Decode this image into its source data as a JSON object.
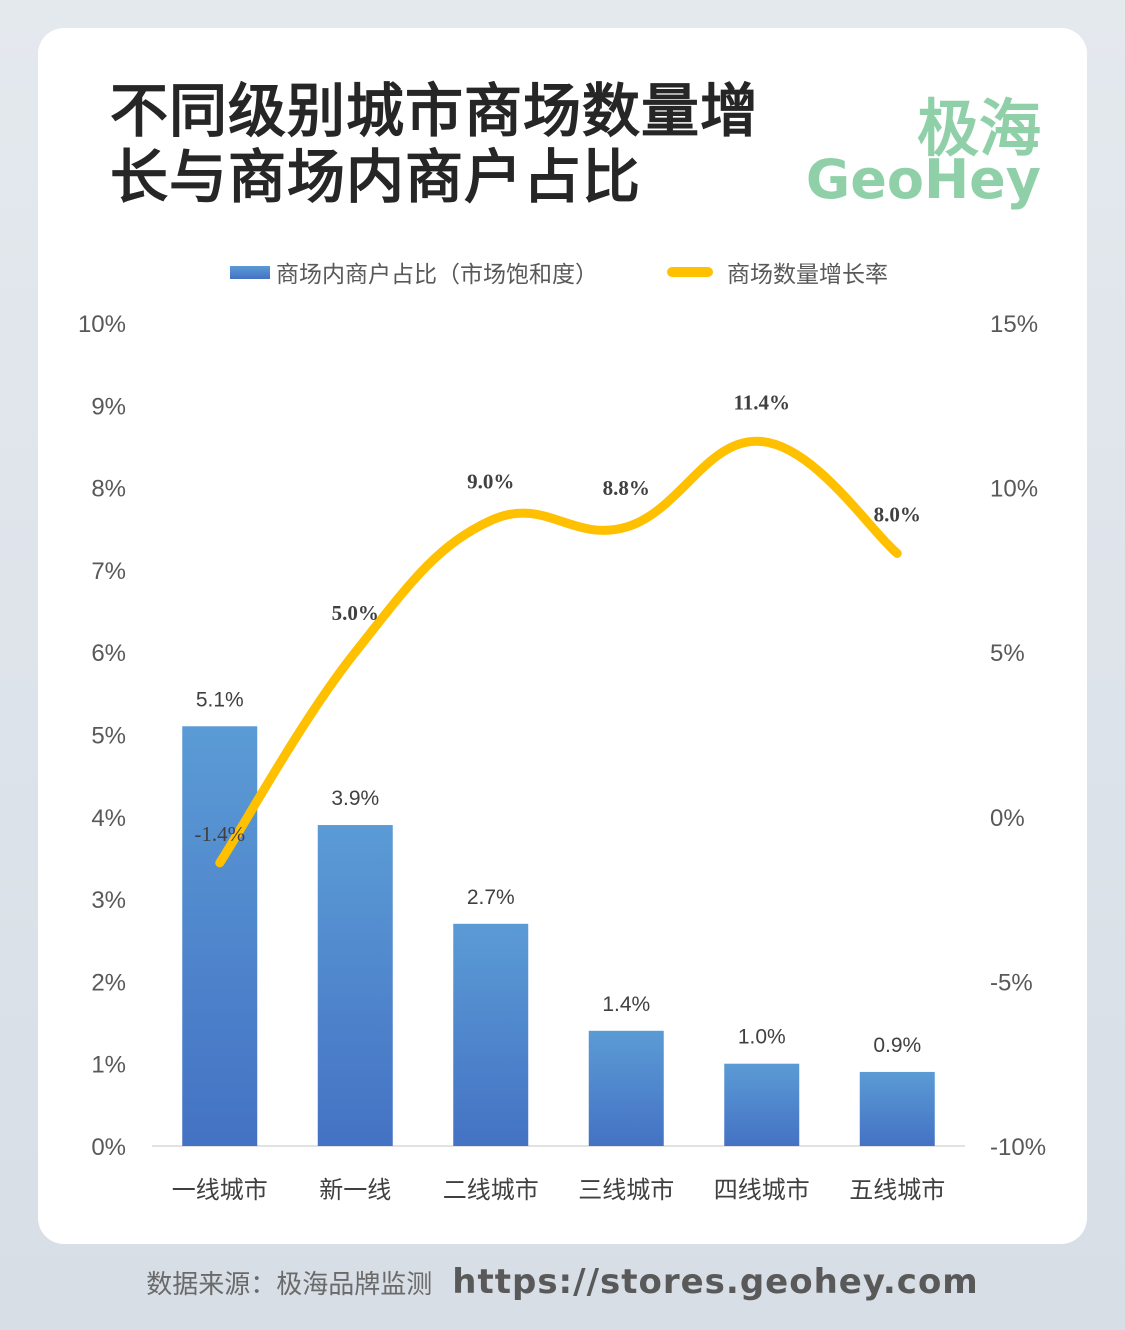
{
  "header": {
    "title": "不同级别城市商场数量增长与商场内商户占比",
    "brand_cn": "极海",
    "brand_en": "GeoHey"
  },
  "legend": {
    "bar_label": "商场内商户占比（市场饱和度）",
    "line_label": "商场数量增长率"
  },
  "footer": {
    "source": "数据来源：极海品牌监测",
    "url": "https://stores.geohey.com"
  },
  "colors": {
    "bar_top": "#5b9bd5",
    "bar_bottom": "#4472c4",
    "line": "#ffc000",
    "brand": "#8fd0a9"
  },
  "chart_data": {
    "type": "bar",
    "title": "不同级别城市商场数量增长与商场内商户占比",
    "categories": [
      "一线城市",
      "新一线",
      "二线城市",
      "三线城市",
      "四线城市",
      "五线城市"
    ],
    "series": [
      {
        "name": "商场内商户占比（市场饱和度）",
        "type": "bar",
        "axis": "left",
        "values": [
          5.1,
          3.9,
          2.7,
          1.4,
          1.0,
          0.9
        ],
        "labels": [
          "5.1%",
          "3.9%",
          "2.7%",
          "1.4%",
          "1.0%",
          "0.9%"
        ]
      },
      {
        "name": "商场数量增长率",
        "type": "line",
        "smooth": true,
        "axis": "right",
        "values": [
          -1.4,
          5.0,
          9.0,
          8.8,
          11.4,
          8.0
        ],
        "labels": [
          "-1.4%",
          "5.0%",
          "9.0%",
          "8.8%",
          "11.4%",
          "8.0%"
        ]
      }
    ],
    "y_left": {
      "range": [
        0,
        10
      ],
      "ticks": [
        "0%",
        "1%",
        "2%",
        "3%",
        "4%",
        "5%",
        "6%",
        "7%",
        "8%",
        "9%",
        "10%"
      ]
    },
    "y_right": {
      "range": [
        -10,
        15
      ],
      "ticks": [
        "-10%",
        "-5%",
        "0%",
        "5%",
        "10%",
        "15%"
      ]
    },
    "grid": false,
    "legend_position": "top"
  }
}
